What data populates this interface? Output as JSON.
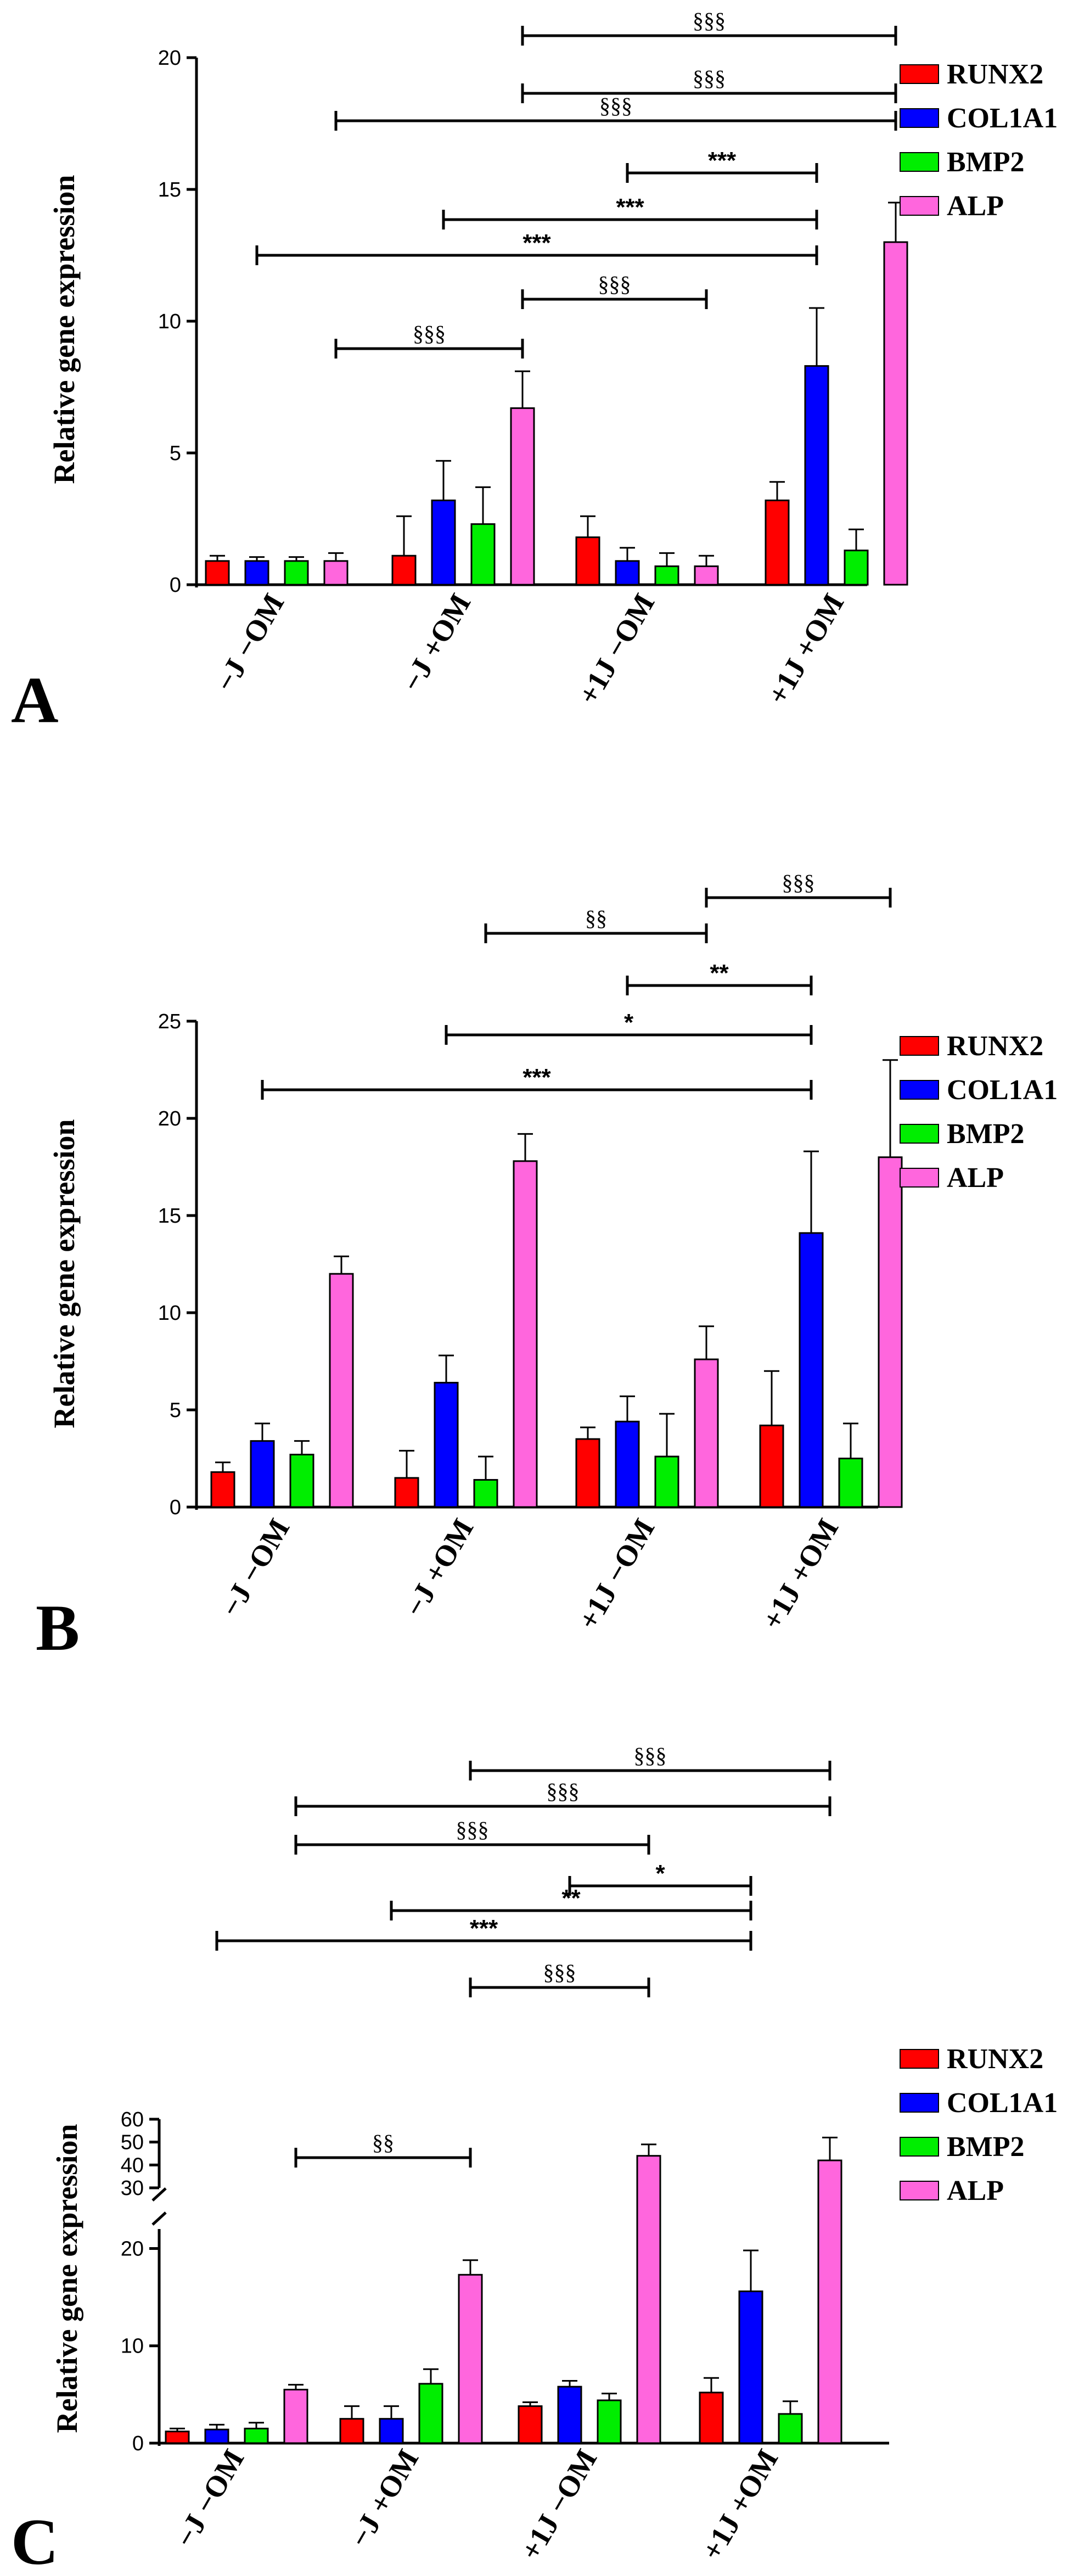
{
  "chart_data": [
    {
      "panel_label": "A",
      "type": "bar",
      "ylabel": "Relative gene expression",
      "ylim": [
        0,
        20
      ],
      "yticks": [
        0,
        5,
        10,
        15,
        20
      ],
      "categories": [
        "−J −OM",
        "−J +OM",
        "+1J −OM",
        "+1J +OM"
      ],
      "series": [
        {
          "name": "RUNX2",
          "color": "#ff0000",
          "values": [
            0.9,
            1.1,
            1.8,
            3.2
          ],
          "errors": [
            0.2,
            1.5,
            0.8,
            0.7
          ]
        },
        {
          "name": "COL1A1",
          "color": "#0000ff",
          "values": [
            0.9,
            3.2,
            0.9,
            8.3
          ],
          "errors": [
            0.15,
            1.5,
            0.5,
            2.2
          ]
        },
        {
          "name": "BMP2",
          "color": "#00ee00",
          "values": [
            0.9,
            2.3,
            0.7,
            1.3
          ],
          "errors": [
            0.15,
            1.4,
            0.5,
            0.8
          ]
        },
        {
          "name": "ALP",
          "color": "#ff66dd",
          "values": [
            0.9,
            6.7,
            0.7,
            13.0
          ],
          "errors": [
            0.3,
            1.4,
            0.4,
            1.5
          ]
        }
      ],
      "annotations": [
        {
          "label": "§§§",
          "from": [
            1,
            3
          ],
          "to": [
            3,
            3
          ]
        },
        {
          "label": "§§§",
          "from": [
            1,
            3
          ],
          "to": [
            3,
            3
          ]
        },
        {
          "label": "§§§",
          "from": [
            0,
            3
          ],
          "to": [
            3,
            3
          ]
        },
        {
          "label": "***",
          "from": [
            2,
            1
          ],
          "to": [
            3,
            1
          ]
        },
        {
          "label": "***",
          "from": [
            1,
            1
          ],
          "to": [
            3,
            1
          ]
        },
        {
          "label": "***",
          "from": [
            0,
            1
          ],
          "to": [
            3,
            1
          ]
        },
        {
          "label": "§§§",
          "from": [
            1,
            3
          ],
          "to": [
            2,
            3
          ]
        },
        {
          "label": "§§§",
          "from": [
            0,
            3
          ],
          "to": [
            1,
            3
          ]
        }
      ]
    },
    {
      "panel_label": "B",
      "type": "bar",
      "ylabel": "Relative gene expression",
      "ylim": [
        0,
        25
      ],
      "yticks": [
        0,
        5,
        10,
        15,
        20,
        25
      ],
      "categories": [
        "−J −OM",
        "−J +OM",
        "+1J −OM",
        "+1J +OM"
      ],
      "series": [
        {
          "name": "RUNX2",
          "color": "#ff0000",
          "values": [
            1.8,
            1.5,
            3.5,
            4.2
          ],
          "errors": [
            0.5,
            1.4,
            0.6,
            2.8
          ]
        },
        {
          "name": "COL1A1",
          "color": "#0000ff",
          "values": [
            3.4,
            6.4,
            4.4,
            14.1
          ],
          "errors": [
            0.9,
            1.4,
            1.3,
            4.2
          ]
        },
        {
          "name": "BMP2",
          "color": "#00ee00",
          "values": [
            2.7,
            1.4,
            2.6,
            2.5
          ],
          "errors": [
            0.7,
            1.2,
            2.2,
            1.8
          ]
        },
        {
          "name": "ALP",
          "color": "#ff66dd",
          "values": [
            12.0,
            17.8,
            7.6,
            18.0
          ],
          "errors": [
            0.9,
            1.4,
            1.7,
            5.0
          ]
        }
      ],
      "annotations": [
        {
          "label": "§§§",
          "from": [
            2,
            3
          ],
          "to": [
            3,
            3
          ]
        },
        {
          "label": "§§",
          "from": [
            1,
            2
          ],
          "to": [
            2,
            3
          ]
        },
        {
          "label": "**",
          "from": [
            2,
            1
          ],
          "to": [
            3,
            1
          ]
        },
        {
          "label": "*",
          "from": [
            1,
            1
          ],
          "to": [
            3,
            1
          ]
        },
        {
          "label": "***",
          "from": [
            0,
            1
          ],
          "to": [
            3,
            1
          ]
        }
      ]
    },
    {
      "panel_label": "C",
      "type": "bar",
      "ylabel": "Relative gene expression",
      "ylim": [
        0,
        60
      ],
      "axis_break": [
        22,
        30
      ],
      "yticks": [
        0,
        10,
        20,
        30,
        40,
        50,
        60
      ],
      "categories": [
        "−J −OM",
        "−J +OM",
        "+1J −OM",
        "+1J +OM"
      ],
      "series": [
        {
          "name": "RUNX2",
          "color": "#ff0000",
          "values": [
            1.2,
            2.5,
            3.8,
            5.2
          ],
          "errors": [
            0.3,
            1.3,
            0.4,
            1.5
          ]
        },
        {
          "name": "COL1A1",
          "color": "#0000ff",
          "values": [
            1.4,
            2.5,
            5.8,
            15.6
          ],
          "errors": [
            0.5,
            1.3,
            0.6,
            4.2
          ]
        },
        {
          "name": "BMP2",
          "color": "#00ee00",
          "values": [
            1.5,
            6.1,
            4.4,
            3.0
          ],
          "errors": [
            0.6,
            1.5,
            0.7,
            1.3
          ]
        },
        {
          "name": "ALP",
          "color": "#ff66dd",
          "values": [
            5.5,
            17.3,
            44.0,
            42.0
          ],
          "errors": [
            0.5,
            1.5,
            5.0,
            10.0
          ]
        }
      ],
      "annotations": [
        {
          "label": "§§§",
          "from": [
            1,
            3
          ],
          "to": [
            3,
            3
          ]
        },
        {
          "label": "§§§",
          "from": [
            0,
            3
          ],
          "to": [
            3,
            3
          ]
        },
        {
          "label": "§§§",
          "from": [
            0,
            3
          ],
          "to": [
            2,
            3
          ]
        },
        {
          "label": "*",
          "from": [
            2,
            1
          ],
          "to": [
            3,
            1
          ]
        },
        {
          "label": "**",
          "from": [
            1,
            1
          ],
          "to": [
            3,
            1
          ]
        },
        {
          "label": "***",
          "from": [
            0,
            1
          ],
          "to": [
            3,
            1
          ]
        },
        {
          "label": "§§§",
          "from": [
            1,
            3
          ],
          "to": [
            2,
            3
          ]
        },
        {
          "label": "§§",
          "from": [
            0,
            3
          ],
          "to": [
            1,
            3
          ]
        }
      ]
    }
  ]
}
